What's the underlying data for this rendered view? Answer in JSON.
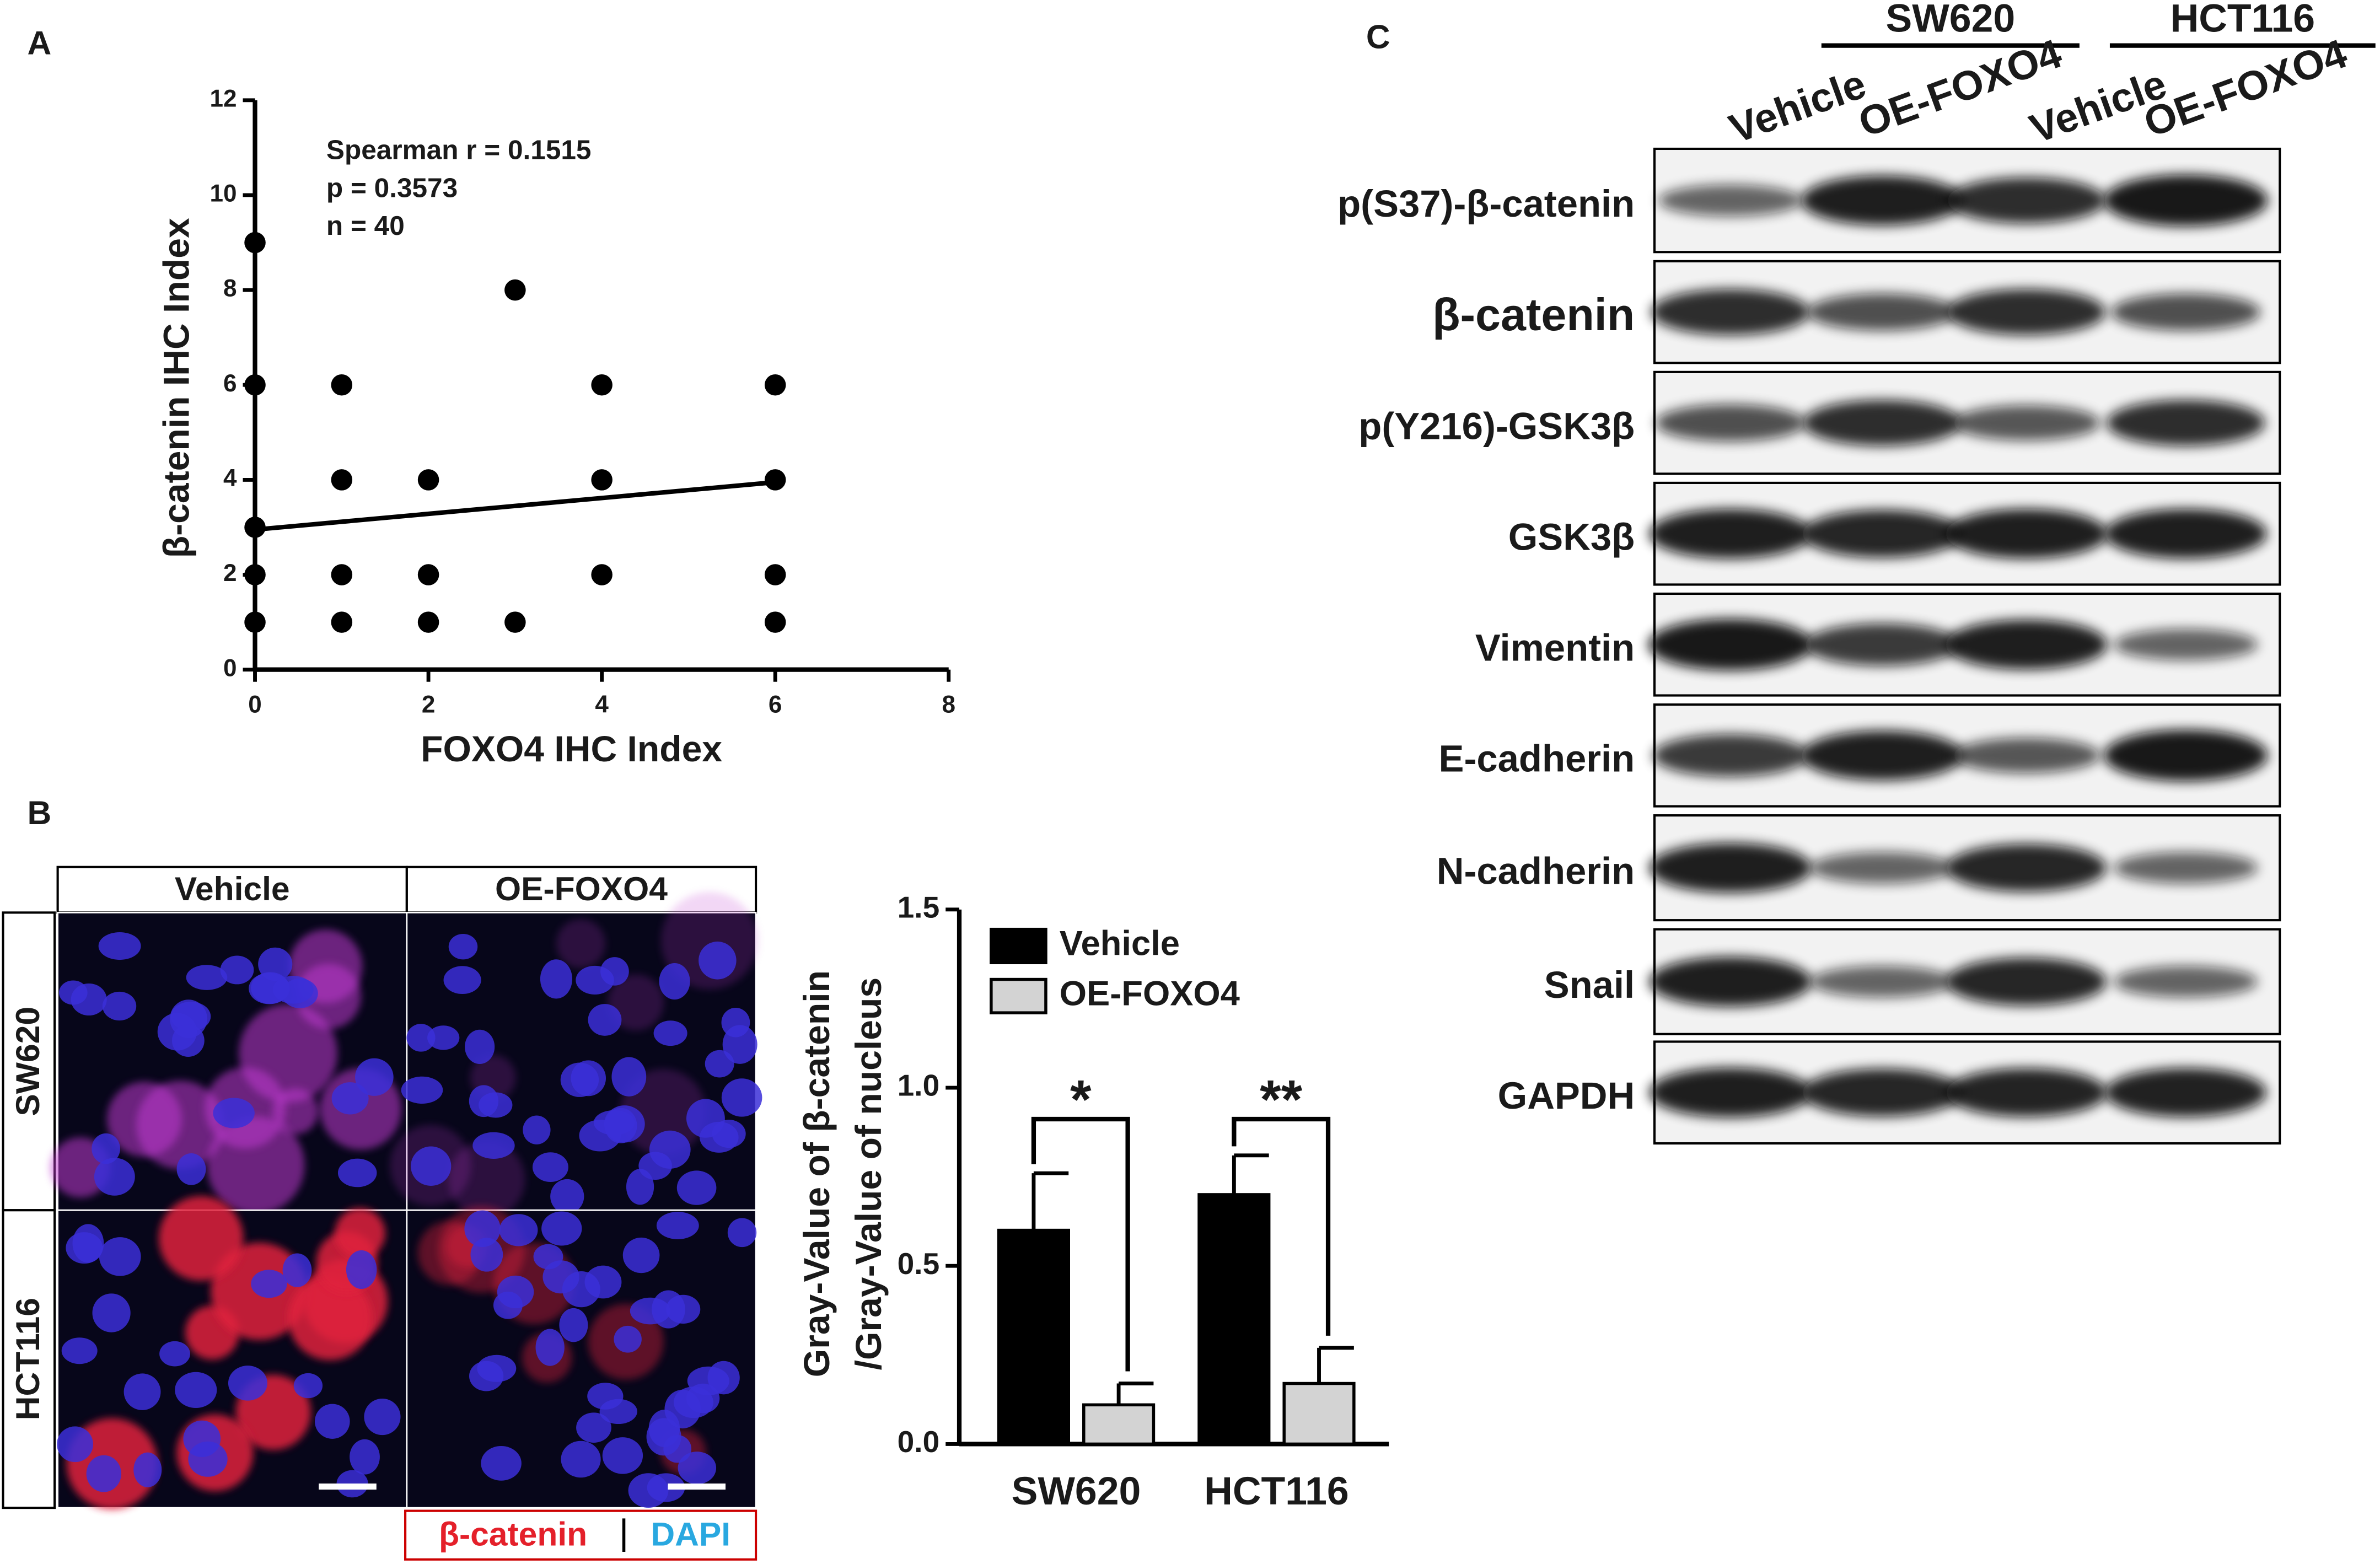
{
  "panel_labels": [
    "A",
    "B",
    "C"
  ],
  "chart_data": [
    {
      "type": "scatter",
      "xlabel": "FOXO4 IHC Index",
      "ylabel": "β-catenin IHC Index",
      "annotations": [
        "Spearman r = 0.1515",
        "p = 0.3573",
        "n = 40"
      ],
      "x": [
        0,
        0,
        0,
        0,
        0,
        1,
        1,
        1,
        1,
        2,
        2,
        2,
        3,
        3,
        4,
        4,
        4,
        6,
        6,
        6,
        6
      ],
      "y": [
        9,
        6,
        3,
        2,
        1,
        6,
        4,
        2,
        1,
        4,
        2,
        1,
        8,
        1,
        6,
        4,
        2,
        6,
        4,
        2,
        1
      ],
      "fit_line": {
        "x": [
          0,
          6
        ],
        "y": [
          2.95,
          3.95
        ]
      },
      "color": "#000000",
      "xlim": [
        0,
        8
      ],
      "xticks": [
        0,
        2,
        4,
        6,
        8
      ],
      "ylim": [
        0,
        12
      ],
      "yticks": [
        0,
        2,
        4,
        6,
        8,
        10,
        12
      ]
    },
    {
      "type": "bar",
      "categories": [
        "SW620",
        "HCT116"
      ],
      "ylabel": [
        "Gray-Value of β-catenin",
        "/Gray-Value of nucleus"
      ],
      "series": [
        {
          "name": "Vehicle",
          "color": "#000000",
          "values": [
            0.6,
            0.7
          ],
          "errors": [
            0.16,
            0.11
          ]
        },
        {
          "name": "OE-FOXO4",
          "color": "#d3d3d3",
          "values": [
            0.11,
            0.17
          ],
          "errors": [
            0.06,
            0.1
          ]
        }
      ],
      "significance": [
        "*",
        "**"
      ],
      "ylim": [
        0,
        1.5
      ],
      "yticks": [
        {
          "value": 0,
          "label": "0.0"
        },
        {
          "value": 0.5,
          "label": "0.5"
        },
        {
          "value": 1,
          "label": "1.0"
        },
        {
          "value": 1.5,
          "label": "1.5"
        }
      ]
    }
  ],
  "microscopy": {
    "columns": [
      "Vehicle",
      "OE-FOXO4"
    ],
    "rows": [
      "SW620",
      "HCT116"
    ],
    "legend": [
      "β-catenin",
      "DAPI"
    ]
  },
  "western_blot": {
    "groups": [
      "SW620",
      "HCT116"
    ],
    "lanes": [
      "Vehicle",
      "OE-FOXO4",
      "Vehicle",
      "OE-FOXO4"
    ],
    "proteins": [
      "p(S37)-β-catenin",
      "β-catenin",
      "p(Y216)-GSK3β",
      "GSK3β",
      "Vimentin",
      "E-cadherin",
      "N-cadherin",
      "Snail",
      "GAPDH"
    ]
  }
}
